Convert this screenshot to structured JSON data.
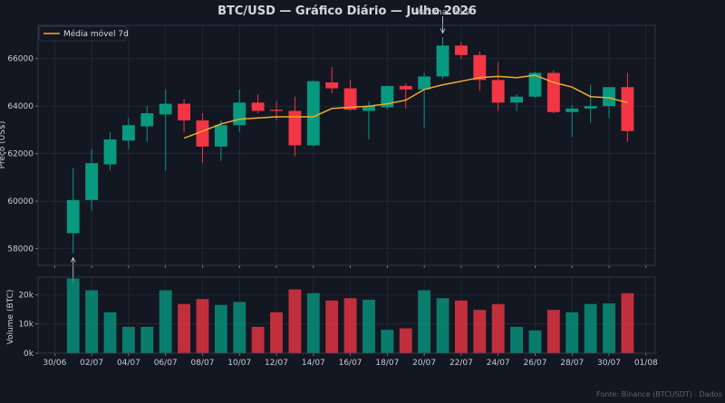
{
  "chart_data": {
    "type": "candlestick",
    "title": "BTC/USD — Gráfico Diário — Julho 2026",
    "ylabel_price": "Preço (US$)",
    "ylabel_volume": "Volume (BTC)",
    "legend": {
      "label": "Média móvel 7d",
      "position": "top-left"
    },
    "footer": "Fonte: Binance (BTCUSDT) · Dados reais",
    "colors": {
      "up": "#089981",
      "down": "#f23645",
      "ma": "#f0a92e",
      "background": "#131722"
    },
    "price_ylim": [
      57300,
      67400
    ],
    "volume_ylim": [
      0,
      26000
    ],
    "price_ticks": [
      58000,
      60000,
      62000,
      64000,
      66000
    ],
    "price_tick_labels": [
      "58000",
      "60000",
      "62000",
      "64000",
      "66000"
    ],
    "volume_ticks": [
      0,
      10000,
      20000
    ],
    "volume_tick_labels": [
      "0k",
      "10k",
      "20k"
    ],
    "xlim": [
      -0.9,
      32.5
    ],
    "x_ticks": [
      0,
      2,
      4,
      6,
      8,
      10,
      12,
      14,
      16,
      18,
      20,
      22,
      24,
      26,
      28,
      30,
      32
    ],
    "x_tick_labels": [
      "30/06",
      "02/07",
      "04/07",
      "06/07",
      "08/07",
      "10/07",
      "12/07",
      "14/07",
      "16/07",
      "18/07",
      "20/07",
      "22/07",
      "24/07",
      "26/07",
      "28/07",
      "30/07",
      "01/08"
    ],
    "annotations": [
      {
        "text": "",
        "day": 1,
        "price": 57700,
        "direction": "up"
      },
      {
        "text": "Máxima: 66.9",
        "day": 21,
        "price": 67000,
        "direction": "down"
      }
    ],
    "candles": [
      {
        "date": "01/07",
        "open": 58650,
        "high": 61400,
        "low": 57800,
        "close": 60050,
        "volume": 25500
      },
      {
        "date": "02/07",
        "open": 60050,
        "high": 62200,
        "low": 59600,
        "close": 61600,
        "volume": 21500
      },
      {
        "date": "03/07",
        "open": 61550,
        "high": 62900,
        "low": 61300,
        "close": 62600,
        "volume": 14000
      },
      {
        "date": "04/07",
        "open": 62550,
        "high": 63500,
        "low": 62200,
        "close": 63200,
        "volume": 9000
      },
      {
        "date": "05/07",
        "open": 63150,
        "high": 64000,
        "low": 62500,
        "close": 63700,
        "volume": 9000
      },
      {
        "date": "06/07",
        "open": 63650,
        "high": 64700,
        "low": 61300,
        "close": 64100,
        "volume": 21500
      },
      {
        "date": "07/07",
        "open": 64100,
        "high": 64300,
        "low": 62900,
        "close": 63400,
        "volume": 16800
      },
      {
        "date": "08/07",
        "open": 63400,
        "high": 63700,
        "low": 61600,
        "close": 62300,
        "volume": 18500
      },
      {
        "date": "09/07",
        "open": 62300,
        "high": 63400,
        "low": 61700,
        "close": 63200,
        "volume": 16500
      },
      {
        "date": "10/07",
        "open": 63200,
        "high": 64700,
        "low": 62900,
        "close": 64150,
        "volume": 17500
      },
      {
        "date": "11/07",
        "open": 64150,
        "high": 64500,
        "low": 63700,
        "close": 63800,
        "volume": 9000
      },
      {
        "date": "12/07",
        "open": 63850,
        "high": 64200,
        "low": 63400,
        "close": 63800,
        "volume": 14000
      },
      {
        "date": "13/07",
        "open": 63800,
        "high": 64400,
        "low": 61900,
        "close": 62350,
        "volume": 21800
      },
      {
        "date": "14/07",
        "open": 62350,
        "high": 65100,
        "low": 62300,
        "close": 65050,
        "volume": 20500
      },
      {
        "date": "15/07",
        "open": 65000,
        "high": 65650,
        "low": 64550,
        "close": 64750,
        "volume": 18000
      },
      {
        "date": "16/07",
        "open": 64750,
        "high": 65100,
        "low": 63800,
        "close": 63850,
        "volume": 18800
      },
      {
        "date": "17/07",
        "open": 63800,
        "high": 64200,
        "low": 62600,
        "close": 64000,
        "volume": 18300
      },
      {
        "date": "18/07",
        "open": 63950,
        "high": 64850,
        "low": 63850,
        "close": 64850,
        "volume": 8000
      },
      {
        "date": "19/07",
        "open": 64850,
        "high": 64950,
        "low": 63900,
        "close": 64700,
        "volume": 8500
      },
      {
        "date": "20/07",
        "open": 64700,
        "high": 65400,
        "low": 63100,
        "close": 65250,
        "volume": 21500
      },
      {
        "date": "21/07",
        "open": 65250,
        "high": 66900,
        "low": 65150,
        "close": 66550,
        "volume": 18800
      },
      {
        "date": "22/07",
        "open": 66550,
        "high": 66700,
        "low": 66000,
        "close": 66150,
        "volume": 18000
      },
      {
        "date": "23/07",
        "open": 66150,
        "high": 66300,
        "low": 64650,
        "close": 65100,
        "volume": 14800
      },
      {
        "date": "24/07",
        "open": 65100,
        "high": 65850,
        "low": 63800,
        "close": 64150,
        "volume": 16800
      },
      {
        "date": "25/07",
        "open": 64150,
        "high": 64500,
        "low": 63800,
        "close": 64400,
        "volume": 9000
      },
      {
        "date": "26/07",
        "open": 64400,
        "high": 65450,
        "low": 64350,
        "close": 65400,
        "volume": 7800
      },
      {
        "date": "27/07",
        "open": 65400,
        "high": 65500,
        "low": 63700,
        "close": 63750,
        "volume": 14800
      },
      {
        "date": "28/07",
        "open": 63750,
        "high": 64050,
        "low": 62700,
        "close": 63900,
        "volume": 14000
      },
      {
        "date": "29/07",
        "open": 63900,
        "high": 64900,
        "low": 63300,
        "close": 64000,
        "volume": 16800
      },
      {
        "date": "30/07",
        "open": 64000,
        "high": 64800,
        "low": 63500,
        "close": 64800,
        "volume": 17000
      },
      {
        "date": "31/07",
        "open": 64800,
        "high": 65400,
        "low": 62500,
        "close": 62950,
        "volume": 20500
      }
    ],
    "moving_average_7d": [
      {
        "day": 7,
        "value": 62650
      },
      {
        "day": 8,
        "value": 62950
      },
      {
        "day": 9,
        "value": 63250
      },
      {
        "day": 10,
        "value": 63450
      },
      {
        "day": 11,
        "value": 63500
      },
      {
        "day": 12,
        "value": 63550
      },
      {
        "day": 13,
        "value": 63550
      },
      {
        "day": 14,
        "value": 63550
      },
      {
        "day": 15,
        "value": 63900
      },
      {
        "day": 16,
        "value": 63950
      },
      {
        "day": 17,
        "value": 64000
      },
      {
        "day": 18,
        "value": 64100
      },
      {
        "day": 19,
        "value": 64250
      },
      {
        "day": 20,
        "value": 64700
      },
      {
        "day": 21,
        "value": 64900
      },
      {
        "day": 22,
        "value": 65050
      },
      {
        "day": 23,
        "value": 65200
      },
      {
        "day": 24,
        "value": 65250
      },
      {
        "day": 25,
        "value": 65200
      },
      {
        "day": 26,
        "value": 65300
      },
      {
        "day": 27,
        "value": 65000
      },
      {
        "day": 28,
        "value": 64800
      },
      {
        "day": 29,
        "value": 64400
      },
      {
        "day": 30,
        "value": 64350
      },
      {
        "day": 31,
        "value": 64150
      }
    ]
  }
}
